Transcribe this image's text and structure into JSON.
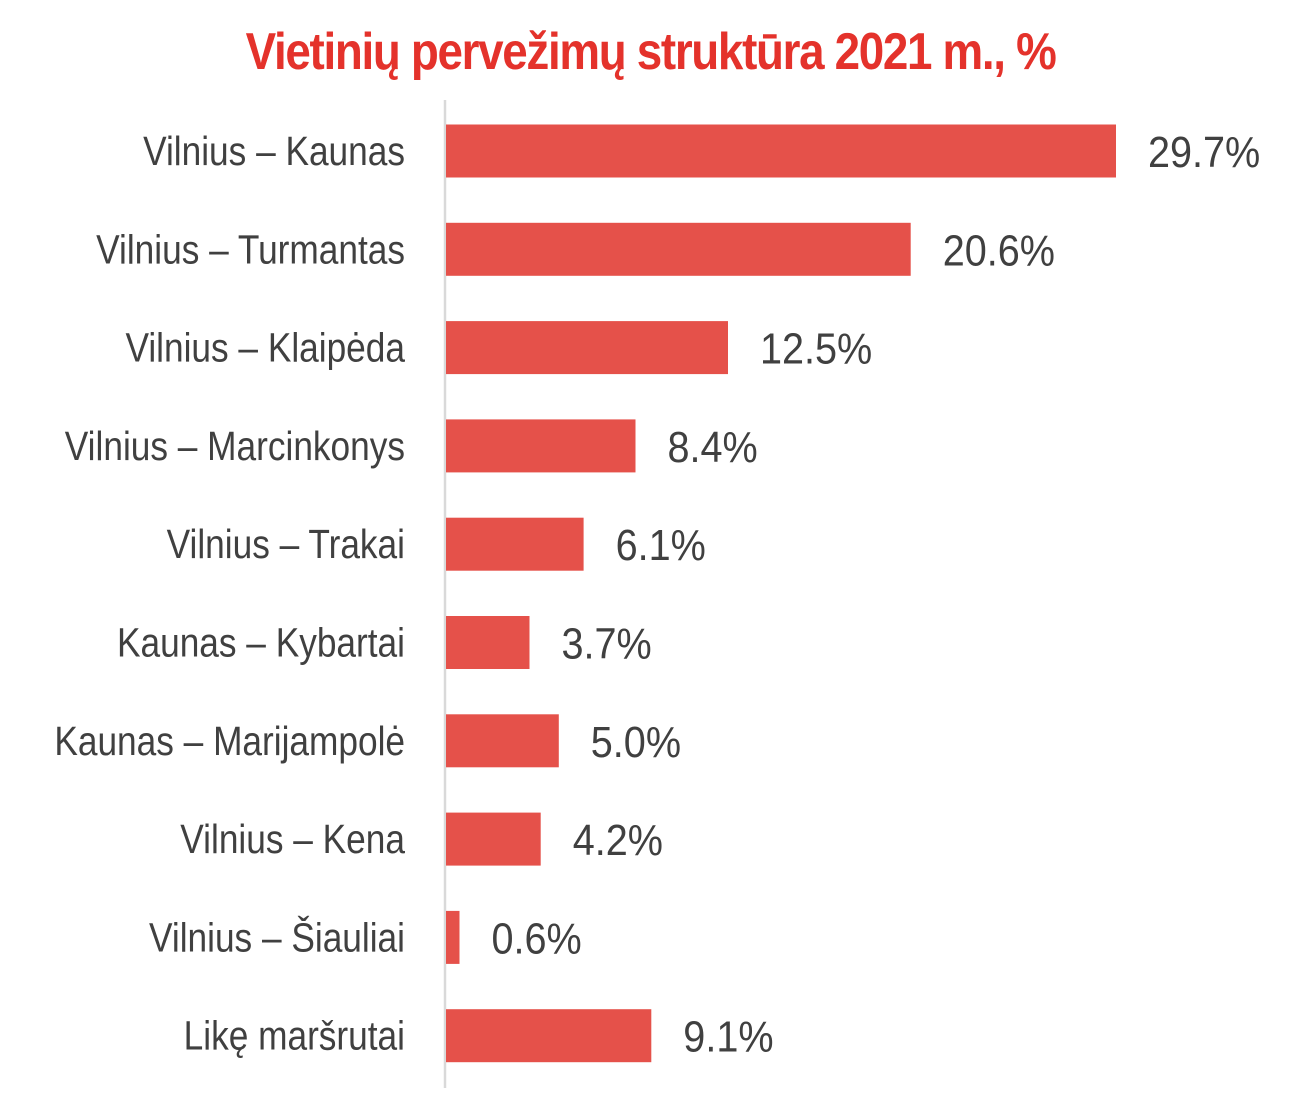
{
  "chart_data": {
    "type": "bar",
    "orientation": "horizontal",
    "title": "Vietinių pervežimų struktūra 2021 m., %",
    "categories": [
      "Vilnius – Kaunas",
      "Vilnius – Turmantas",
      "Vilnius – Klaipėda",
      "Vilnius – Marcinkonys",
      "Vilnius – Trakai",
      "Kaunas – Kybartai",
      "Kaunas – Marijampolė",
      "Vilnius – Kena",
      "Vilnius – Šiauliai",
      "Likę maršrutai"
    ],
    "values": [
      29.7,
      20.6,
      12.5,
      8.4,
      6.1,
      3.7,
      5.0,
      4.2,
      0.6,
      9.1
    ],
    "value_labels": [
      "29.7%",
      "20.6%",
      "12.5%",
      "8.4%",
      "6.1%",
      "3.7%",
      "5.0%",
      "4.2%",
      "0.6%",
      "9.1%"
    ],
    "unit": "%",
    "xlim": [
      0,
      29.7
    ],
    "grid": false,
    "legend": "none",
    "colors": {
      "title": "#e4322b",
      "bar": "#e5514a",
      "axis": "#d9d9d9",
      "text": "#404040"
    }
  }
}
